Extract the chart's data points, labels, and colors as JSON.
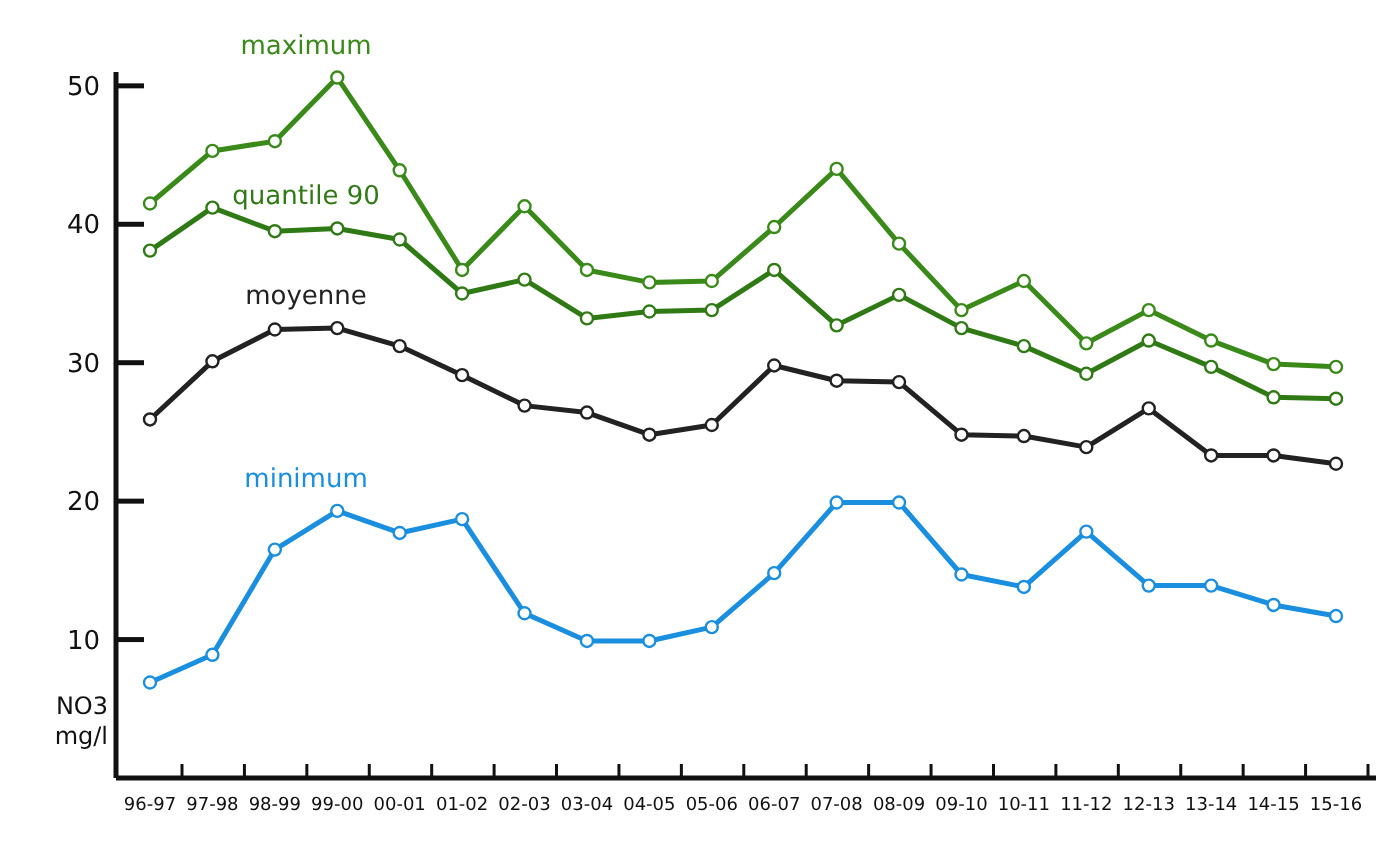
{
  "chart_data": {
    "type": "line",
    "ylabel": "NO3 mg/l",
    "categories": [
      "96-97",
      "97-98",
      "98-99",
      "99-00",
      "00-01",
      "01-02",
      "02-03",
      "03-04",
      "04-05",
      "05-06",
      "06-07",
      "07-08",
      "08-09",
      "09-10",
      "10-11",
      "11-12",
      "12-13",
      "13-14",
      "14-15",
      "15-16"
    ],
    "series": [
      {
        "name": "maximum",
        "color": "#3a8a1a",
        "values": [
          41.5,
          45.3,
          46.0,
          50.6,
          43.9,
          36.7,
          41.3,
          36.7,
          35.8,
          35.9,
          39.8,
          44.0,
          38.6,
          33.8,
          35.9,
          31.4,
          33.8,
          31.6,
          29.9,
          29.7
        ]
      },
      {
        "name": "quantile 90",
        "color": "#2f7a14",
        "values": [
          38.1,
          41.2,
          39.5,
          39.7,
          38.9,
          35.0,
          36.0,
          33.2,
          33.7,
          33.8,
          36.7,
          32.7,
          34.9,
          32.5,
          31.2,
          29.2,
          31.6,
          29.7,
          27.5,
          27.4
        ]
      },
      {
        "name": "moyenne",
        "color": "#222222",
        "values": [
          25.9,
          30.1,
          32.4,
          32.5,
          31.2,
          29.1,
          26.9,
          26.4,
          24.8,
          25.5,
          29.8,
          28.7,
          28.6,
          24.8,
          24.7,
          23.9,
          26.7,
          23.3,
          23.3,
          22.7
        ]
      },
      {
        "name": "minimum",
        "color": "#1a8fe0",
        "values": [
          6.9,
          8.9,
          16.5,
          19.3,
          17.7,
          18.7,
          11.9,
          9.9,
          9.9,
          10.9,
          14.8,
          19.9,
          19.9,
          14.7,
          13.8,
          17.8,
          13.9,
          13.9,
          12.5,
          11.7
        ]
      }
    ],
    "ylim": [
      0,
      51
    ],
    "yticks": [
      10,
      20,
      30,
      40,
      50
    ],
    "grid": false,
    "legend": false,
    "marker": "circle",
    "line_style": "solid"
  }
}
